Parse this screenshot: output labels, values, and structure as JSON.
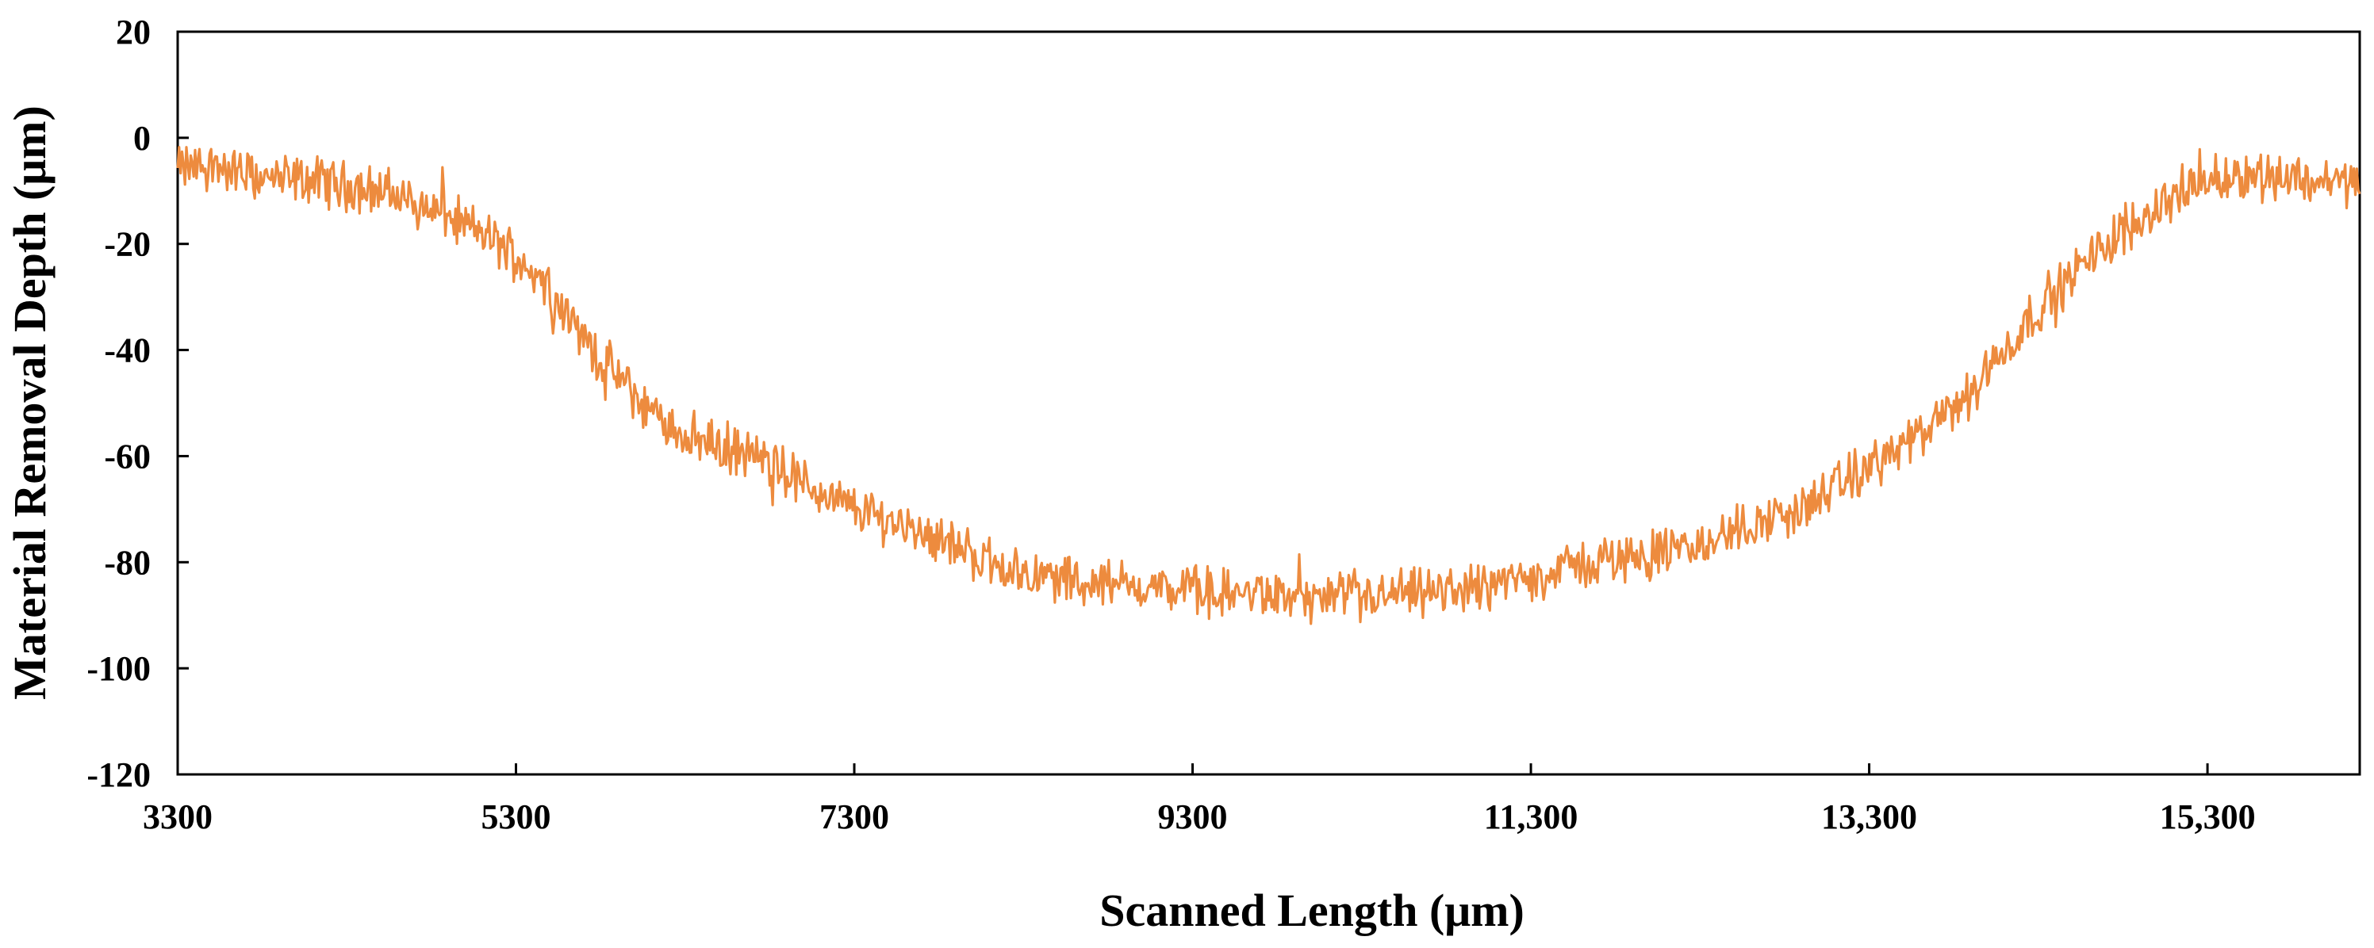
{
  "chart_data": {
    "type": "line",
    "title": "",
    "xlabel": "Scanned Length (μm)",
    "ylabel": "Material Removal Depth (μm)",
    "xlim": [
      3300,
      16200
    ],
    "ylim": [
      -120,
      20
    ],
    "x_ticks": [
      3300,
      5300,
      7300,
      9300,
      11300,
      13300,
      15300
    ],
    "x_tick_labels": [
      "3300",
      "5300",
      "7300",
      "9300",
      "11,300",
      "13,300",
      "15,300"
    ],
    "y_ticks": [
      20,
      0,
      -20,
      -40,
      -60,
      -80,
      -100,
      -120
    ],
    "y_tick_labels": [
      "20",
      "0",
      "-20",
      "-40",
      "-60",
      "-80",
      "-100",
      "-120"
    ],
    "grid": false,
    "legend": "none",
    "colors": {
      "series": "#ED8B3E",
      "axis": "#000000"
    },
    "series": [
      {
        "x": [
          3300,
          3500,
          3700,
          3900,
          4100,
          4300,
          4500,
          4700,
          4900,
          5100,
          5300,
          5500,
          5700,
          5900,
          6100,
          6300,
          6500,
          6700,
          6900,
          7100,
          7300,
          7500,
          7700,
          7900,
          8100,
          8300,
          8500,
          8700,
          8900,
          9100,
          9300,
          9500,
          9700,
          9900,
          10100,
          10300,
          10500,
          10700,
          10900,
          11100,
          11300,
          11500,
          11700,
          11900,
          12100,
          12300,
          12500,
          12700,
          12900,
          13100,
          13300,
          13500,
          13700,
          13900,
          14100,
          14300,
          14500,
          14700,
          14900,
          15100,
          15300,
          15500,
          15700,
          15900,
          16100,
          16200
        ],
        "y": [
          -6,
          -5,
          -7,
          -8,
          -8,
          -9,
          -10,
          -12,
          -15,
          -18,
          -22,
          -28,
          -38,
          -45,
          -52,
          -56,
          -58,
          -60,
          -63,
          -67,
          -70,
          -72,
          -74,
          -77,
          -80,
          -82,
          -83,
          -84,
          -84,
          -85,
          -85,
          -86,
          -86,
          -87,
          -87,
          -87,
          -86,
          -86,
          -85,
          -84,
          -83,
          -81,
          -80,
          -79,
          -78,
          -77,
          -74,
          -72,
          -70,
          -66,
          -62,
          -58,
          -54,
          -48,
          -40,
          -32,
          -26,
          -20,
          -15,
          -11,
          -8,
          -7,
          -7,
          -8,
          -8,
          -9
        ]
      }
    ]
  }
}
